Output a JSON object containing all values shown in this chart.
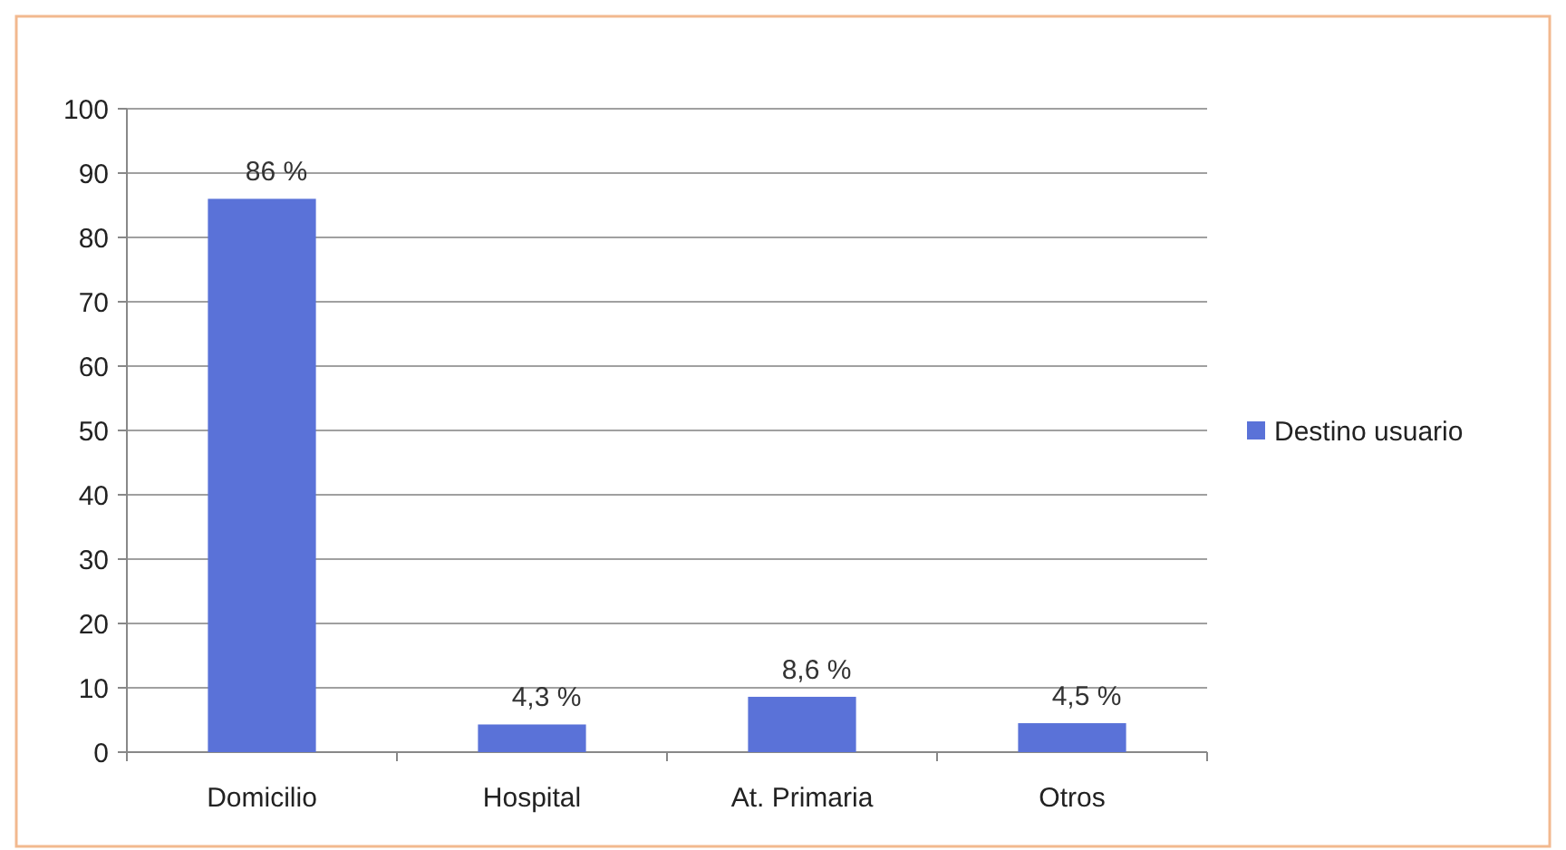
{
  "chart_data": {
    "type": "bar",
    "categories": [
      "Domicilio",
      "Hospital",
      "At. Primaria",
      "Otros"
    ],
    "series": [
      {
        "name": "Destino usuario",
        "color": "#5a72d8",
        "values": [
          86,
          4.3,
          8.6,
          4.5
        ],
        "value_labels": [
          "86 %",
          "4,3 %",
          "8,6 %",
          "4,5 %"
        ]
      }
    ],
    "ylim": [
      0,
      100
    ],
    "yticks": [
      0,
      10,
      20,
      30,
      40,
      50,
      60,
      70,
      80,
      90,
      100
    ],
    "grid": "y",
    "legend": "right"
  }
}
